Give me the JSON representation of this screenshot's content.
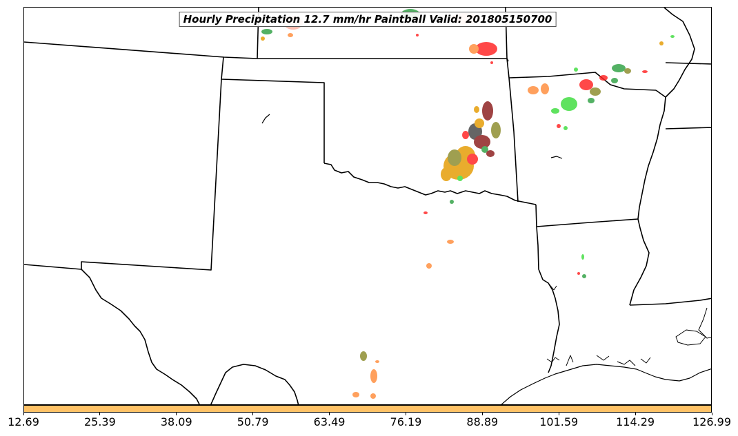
{
  "title": "Hourly Precipitation 12.7 mm/hr Paintball Valid: 201805150700",
  "colorbar": {
    "color": "#ffc266",
    "ticks": [
      "12.69",
      "25.39",
      "38.09",
      "50.79",
      "63.49",
      "76.19",
      "88.89",
      "101.59",
      "114.29",
      "126.99"
    ]
  },
  "colors": {
    "boundary": "#000000",
    "members": [
      "#ff2020",
      "#ff8c3a",
      "#e59a00",
      "#8a8a2a",
      "#2ea043",
      "#3cdc3c",
      "#8b1a1a",
      "#444444",
      "#ffb0a0"
    ]
  }
}
